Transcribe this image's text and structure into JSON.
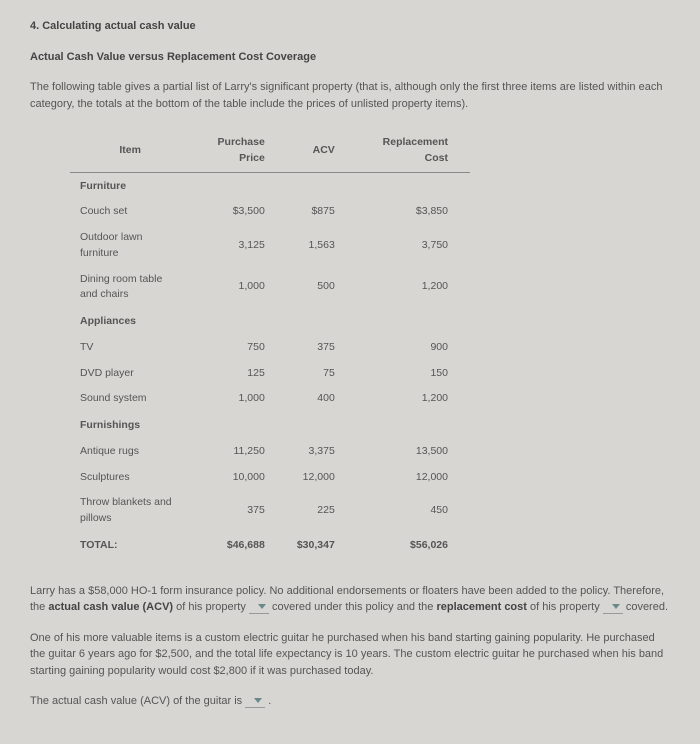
{
  "section_number": "4. Calculating actual cash value",
  "subhead": "Actual Cash Value versus Replacement Cost Coverage",
  "intro": "The following table gives a partial list of Larry's significant property (that is, although only the first three items are listed within each category, the totals at the bottom of the table include the prices of unlisted property items).",
  "table": {
    "columns": [
      "Item",
      "Purchase Price",
      "ACV",
      "Replacement Cost"
    ],
    "categories": [
      {
        "name": "Furniture",
        "rows": [
          {
            "item": "Couch set",
            "pp": "$3,500",
            "acv": "$875",
            "rc": "$3,850"
          },
          {
            "item": "Outdoor lawn furniture",
            "pp": "3,125",
            "acv": "1,563",
            "rc": "3,750"
          },
          {
            "item": "Dining room table and chairs",
            "pp": "1,000",
            "acv": "500",
            "rc": "1,200"
          }
        ]
      },
      {
        "name": "Appliances",
        "rows": [
          {
            "item": "TV",
            "pp": "750",
            "acv": "375",
            "rc": "900"
          },
          {
            "item": "DVD player",
            "pp": "125",
            "acv": "75",
            "rc": "150"
          },
          {
            "item": "Sound system",
            "pp": "1,000",
            "acv": "400",
            "rc": "1,200"
          }
        ]
      },
      {
        "name": "Furnishings",
        "rows": [
          {
            "item": "Antique rugs",
            "pp": "11,250",
            "acv": "3,375",
            "rc": "13,500"
          },
          {
            "item": "Sculptures",
            "pp": "10,000",
            "acv": "12,000",
            "rc": "12,000"
          },
          {
            "item": "Throw blankets and pillows",
            "pp": "375",
            "acv": "225",
            "rc": "450"
          }
        ]
      }
    ],
    "total": {
      "label": "TOTAL:",
      "pp": "$46,688",
      "acv": "$30,347",
      "rc": "$56,026"
    }
  },
  "para1": {
    "t1": "Larry has a $58,000 HO-1 form insurance policy. No additional endorsements or floaters have been added to the policy. Therefore, the ",
    "b1": "actual cash value (ACV)",
    "t2": " of his property ",
    "t3": " covered under this policy and the ",
    "b2": "replacement cost",
    "t4": " of his property ",
    "t5": " covered."
  },
  "para2": "One of his more valuable items is a custom electric guitar he purchased when his band starting gaining popularity. He purchased the guitar 6 years ago for $2,500, and the total life expectancy is 10 years. The custom electric guitar he purchased when his band starting gaining popularity would cost $2,800 if it was purchased today.",
  "para3": {
    "t1": "The actual cash value (ACV) of the guitar is "
  },
  "colors": {
    "bg": "#d8d6d3",
    "text": "#555",
    "heading": "#444",
    "border": "#888",
    "dropdown_arrow": "#6a8a8a"
  }
}
